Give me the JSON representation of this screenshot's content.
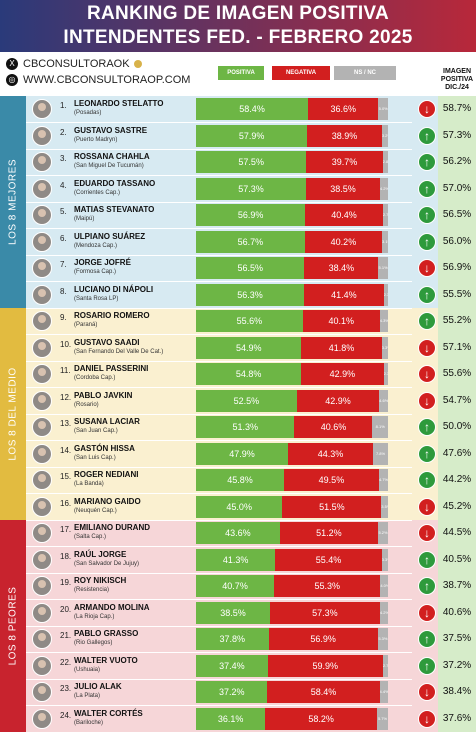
{
  "header": {
    "title_line1": "RANKING DE IMAGEN POSITIVA",
    "title_line2": "INTENDENTES FED. - FEBRERO 2025"
  },
  "brand": {
    "x_handle": "CBCONSULTORAOK",
    "website": "WWW.CBCONSULTORAOP.COM"
  },
  "legend": {
    "positiva": "POSITIVA",
    "negativa": "NEGATIVA",
    "nsnc": "NS / NC",
    "dic_header": "IMAGEN POSITIVA DIC./24"
  },
  "sections": [
    {
      "label": "LOS 8 MEJORES",
      "color": "#3a8aa8",
      "band": "#d7eaf2"
    },
    {
      "label": "LOS 8 DEL MEDIO",
      "color": "#e2bb40",
      "band": "#faf0d0"
    },
    {
      "label": "LOS 8 PEORES",
      "color": "#c8232e",
      "band": "#f6d6d8"
    }
  ],
  "colors": {
    "positiva": "#6db645",
    "negativa": "#d21f1f",
    "nsnc": "#b3b3b3",
    "up_arrow": "#2e9a3c",
    "down_arrow": "#d21f1f"
  },
  "chart_data": {
    "type": "bar",
    "title": "RANKING DE IMAGEN POSITIVA INTENDENTES FED. - FEBRERO 2025",
    "series_names": [
      "POSITIVA",
      "NEGATIVA",
      "NS / NC"
    ],
    "rows": [
      {
        "rank": "1.",
        "name": "LEONARDO STELATTO",
        "city": "(Posadas)",
        "pos": "58.4%",
        "neg": "36.6%",
        "ns": "5.0%",
        "trend": "down",
        "dic": "58.7%"
      },
      {
        "rank": "2.",
        "name": "GUSTAVO SASTRE",
        "city": "(Puerto Madryn)",
        "pos": "57.9%",
        "neg": "38.9%",
        "ns": "3.2%",
        "trend": "up",
        "dic": "57.3%"
      },
      {
        "rank": "3.",
        "name": "ROSSANA CHAHLA",
        "city": "(San Miguel De Tucumán)",
        "pos": "57.5%",
        "neg": "39.7%",
        "ns": "2.8%",
        "trend": "up",
        "dic": "56.2%"
      },
      {
        "rank": "4.",
        "name": "EDUARDO TASSANO",
        "city": "(Corrientes Cap.)",
        "pos": "57.3%",
        "neg": "38.5%",
        "ns": "4.2%",
        "trend": "up",
        "dic": "57.0%"
      },
      {
        "rank": "5.",
        "name": "MATIAS STEVANATO",
        "city": "(Maipú)",
        "pos": "56.9%",
        "neg": "40.4%",
        "ns": "2.7%",
        "trend": "up",
        "dic": "56.5%"
      },
      {
        "rank": "6.",
        "name": "ULPIANO SUÁREZ",
        "city": "(Mendoza Cap.)",
        "pos": "56.7%",
        "neg": "40.2%",
        "ns": "3.1%",
        "trend": "up",
        "dic": "56.0%"
      },
      {
        "rank": "7.",
        "name": "JORGE JOFRÉ",
        "city": "(Formosa Cap.)",
        "pos": "56.5%",
        "neg": "38.4%",
        "ns": "5.1%",
        "trend": "down",
        "dic": "56.9%"
      },
      {
        "rank": "8.",
        "name": "LUCIANO DI NÁPOLI",
        "city": "(Santa Rosa LP)",
        "pos": "56.3%",
        "neg": "41.4%",
        "ns": "2.3%",
        "trend": "up",
        "dic": "55.5%"
      },
      {
        "rank": "9.",
        "name": "ROSARIO ROMERO",
        "city": "(Paraná)",
        "pos": "55.6%",
        "neg": "40.1%",
        "ns": "4.3%",
        "trend": "up",
        "dic": "55.2%"
      },
      {
        "rank": "10.",
        "name": "GUSTAVO SAADI",
        "city": "(San Fernando Del Valle De Cat.)",
        "pos": "54.9%",
        "neg": "41.8%",
        "ns": "3.3%",
        "trend": "down",
        "dic": "57.1%"
      },
      {
        "rank": "11.",
        "name": "DANIEL PASSERINI",
        "city": "(Cordoba Cap.)",
        "pos": "54.8%",
        "neg": "42.9%",
        "ns": "2.3%",
        "trend": "down",
        "dic": "55.6%"
      },
      {
        "rank": "12.",
        "name": "PABLO JAVKIN",
        "city": "(Rosario)",
        "pos": "52.5%",
        "neg": "42.9%",
        "ns": "4.6%",
        "trend": "down",
        "dic": "54.7%"
      },
      {
        "rank": "13.",
        "name": "SUSANA LACIAR",
        "city": "(San Juan Cap.)",
        "pos": "51.3%",
        "neg": "40.6%",
        "ns": "8.1%",
        "trend": "up",
        "dic": "50.0%"
      },
      {
        "rank": "14.",
        "name": "GASTÓN HISSA",
        "city": "(San Luis Cap.)",
        "pos": "47.9%",
        "neg": "44.3%",
        "ns": "7.8%",
        "trend": "up",
        "dic": "47.6%"
      },
      {
        "rank": "15.",
        "name": "ROGER NEDIANI",
        "city": "(La Banda)",
        "pos": "45.8%",
        "neg": "49.5%",
        "ns": "4.7%",
        "trend": "up",
        "dic": "44.2%"
      },
      {
        "rank": "16.",
        "name": "MARIANO GAIDO",
        "city": "(Neuquén Cap.)",
        "pos": "45.0%",
        "neg": "51.5%",
        "ns": "3.5%",
        "trend": "down",
        "dic": "45.2%"
      },
      {
        "rank": "17.",
        "name": "EMILIANO DURAND",
        "city": "(Salta Cap.)",
        "pos": "43.6%",
        "neg": "51.2%",
        "ns": "5.2%",
        "trend": "down",
        "dic": "44.5%"
      },
      {
        "rank": "18.",
        "name": "RAÚL JORGE",
        "city": "(San Salvador De Jujuy)",
        "pos": "41.3%",
        "neg": "55.4%",
        "ns": "3.3%",
        "trend": "up",
        "dic": "40.5%"
      },
      {
        "rank": "19.",
        "name": "ROY NIKISCH",
        "city": "(Resistencia)",
        "pos": "40.7%",
        "neg": "55.3%",
        "ns": "4.0%",
        "trend": "up",
        "dic": "38.7%"
      },
      {
        "rank": "20.",
        "name": "ARMANDO MOLINA",
        "city": "(La Rioja Cap.)",
        "pos": "38.5%",
        "neg": "57.3%",
        "ns": "4.2%",
        "trend": "down",
        "dic": "40.6%"
      },
      {
        "rank": "21.",
        "name": "PABLO GRASSO",
        "city": "(Rio Gallegos)",
        "pos": "37.8%",
        "neg": "56.9%",
        "ns": "5.3%",
        "trend": "up",
        "dic": "37.5%"
      },
      {
        "rank": "22.",
        "name": "WALTER VUOTO",
        "city": "(Ushuaia)",
        "pos": "37.4%",
        "neg": "59.9%",
        "ns": "2.7%",
        "trend": "up",
        "dic": "37.2%"
      },
      {
        "rank": "23.",
        "name": "JULIO ALAK",
        "city": "(La Plata)",
        "pos": "37.2%",
        "neg": "58.4%",
        "ns": "4.4%",
        "trend": "down",
        "dic": "38.4%"
      },
      {
        "rank": "24.",
        "name": "WALTER CORTÉS",
        "city": "(Bariloche)",
        "pos": "36.1%",
        "neg": "58.2%",
        "ns": "5.7%",
        "trend": "down",
        "dic": "37.6%"
      }
    ]
  }
}
